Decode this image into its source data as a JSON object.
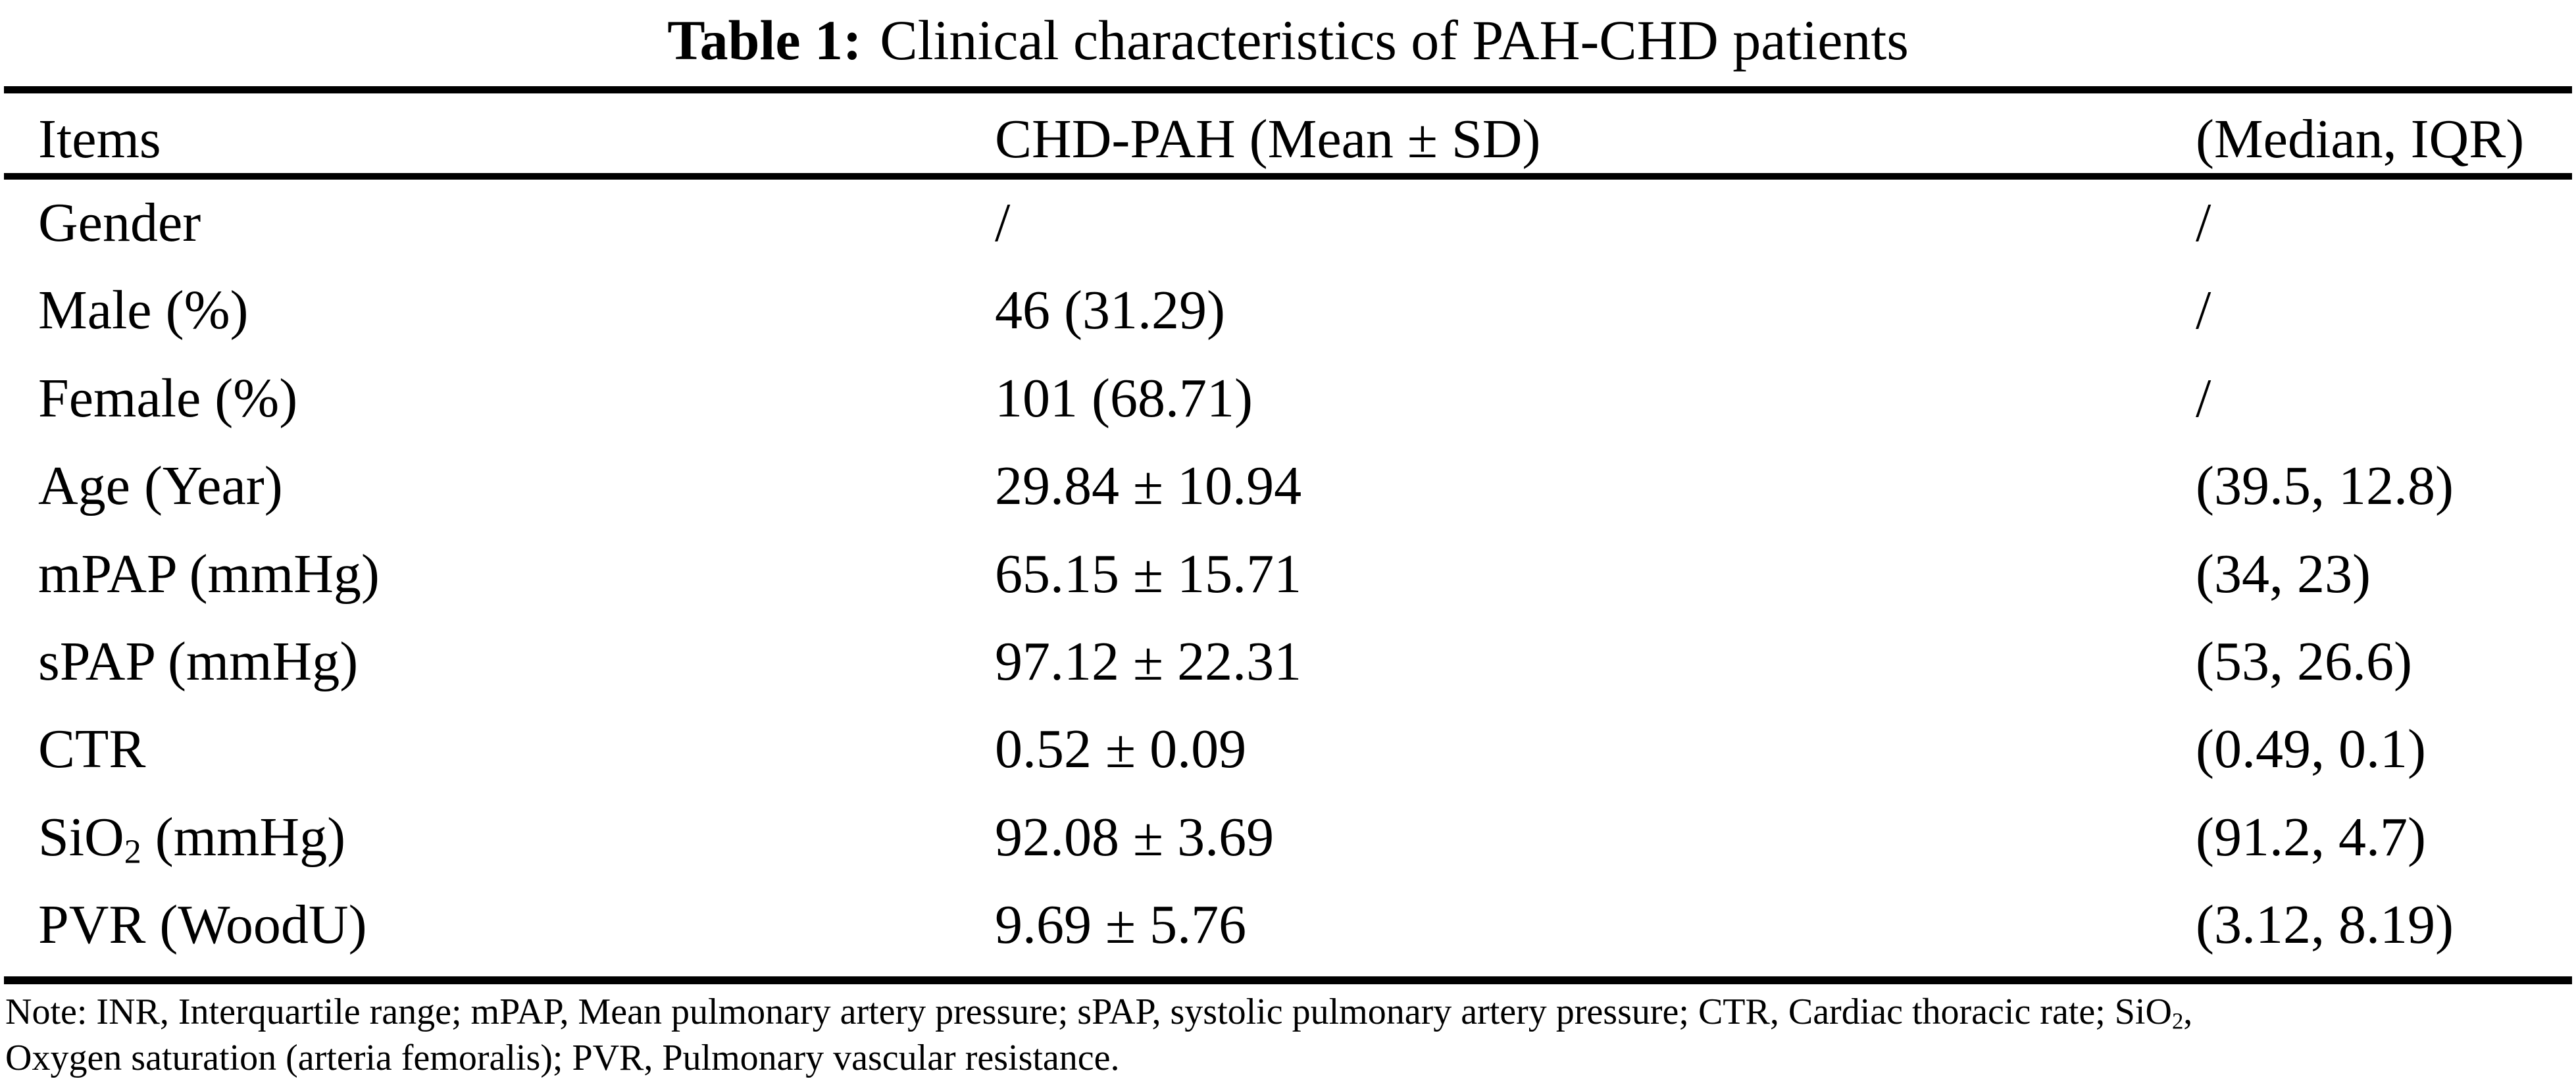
{
  "title": {
    "label": "Table 1:",
    "text": "Clinical characteristics of PAH-CHD patients"
  },
  "table": {
    "columns": [
      "Items",
      "CHD-PAH (Mean ± SD)",
      "(Median, IQR)"
    ],
    "rows": [
      {
        "item": "Gender",
        "mean_sd": "/",
        "median_iqr": "/"
      },
      {
        "item": "Male (%)",
        "mean_sd": "46 (31.29)",
        "median_iqr": "/"
      },
      {
        "item": "Female (%)",
        "mean_sd": "101 (68.71)",
        "median_iqr": "/"
      },
      {
        "item": "Age (Year)",
        "mean_sd": "29.84 ± 10.94",
        "median_iqr": "(39.5, 12.8)"
      },
      {
        "item": "mPAP (mmHg)",
        "mean_sd": "65.15 ± 15.71",
        "median_iqr": "(34, 23)"
      },
      {
        "item": "sPAP (mmHg)",
        "mean_sd": "97.12 ± 22.31",
        "median_iqr": "(53, 26.6)"
      },
      {
        "item": "CTR",
        "mean_sd": "0.52 ± 0.09",
        "median_iqr": "(0.49, 0.1)"
      },
      {
        "item": "SiO₂ (mmHg)",
        "mean_sd": "92.08 ± 3.69",
        "median_iqr": "(91.2, 4.7)"
      },
      {
        "item": "PVR (WoodU)",
        "mean_sd": "9.69 ± 5.76",
        "median_iqr": "(3.12, 8.19)"
      }
    ]
  },
  "note": {
    "lines": [
      "Note: INR, Interquartile range; mPAP, Mean pulmonary artery pressure; sPAP, systolic pulmonary artery pressure; CTR, Cardiac thoracic rate; SiO₂,",
      "Oxygen saturation (arteria femoralis); PVR, Pulmonary vascular resistance."
    ]
  },
  "colors": {
    "text": "#000000",
    "background": "#ffffff",
    "rule": "#000000"
  }
}
